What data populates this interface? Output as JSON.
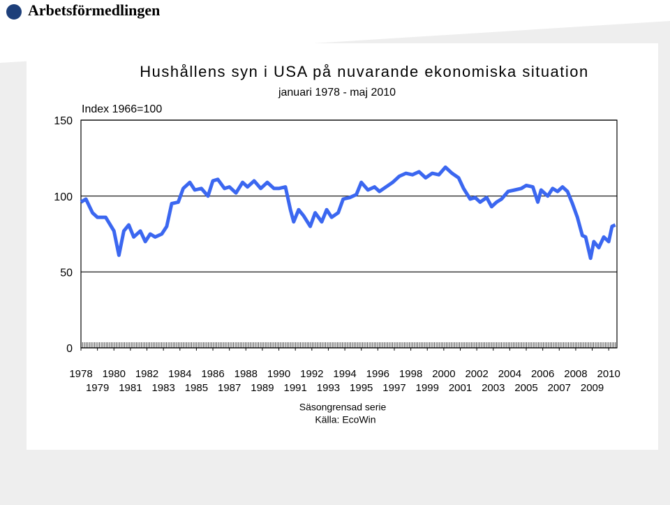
{
  "brand": "Arbetsförmedlingen",
  "chart_data": {
    "type": "line",
    "title": "Hushållens syn i USA på nuvarande ekonomiska situation",
    "subtitle": "januari 1978 - maj 2010",
    "y_label": "Index 1966=100",
    "notes": [
      "Säsongrensad serie",
      "Källa: EcoWin"
    ],
    "xlim": [
      1978,
      2010.5
    ],
    "xticks": [
      1978,
      1979,
      1980,
      1981,
      1982,
      1983,
      1984,
      1985,
      1986,
      1987,
      1988,
      1989,
      1990,
      1991,
      1992,
      1993,
      1994,
      1995,
      1996,
      1997,
      1998,
      1999,
      2000,
      2001,
      2002,
      2003,
      2004,
      2005,
      2006,
      2007,
      2008,
      2009,
      2010
    ],
    "ylim": [
      0,
      150
    ],
    "yticks": [
      0,
      50,
      100,
      150
    ],
    "grid": true,
    "series": [
      {
        "color": "#3b67f0",
        "x": [
          1978.0,
          1978.3,
          1978.7,
          1979.0,
          1979.5,
          1980.0,
          1980.3,
          1980.6,
          1980.9,
          1981.2,
          1981.6,
          1981.9,
          1982.2,
          1982.5,
          1982.9,
          1983.2,
          1983.5,
          1983.9,
          1984.2,
          1984.6,
          1984.9,
          1985.3,
          1985.7,
          1986.0,
          1986.3,
          1986.7,
          1987.0,
          1987.4,
          1987.8,
          1988.1,
          1988.5,
          1988.9,
          1989.3,
          1989.7,
          1990.0,
          1990.4,
          1990.7,
          1990.9,
          1991.2,
          1991.5,
          1991.9,
          1992.2,
          1992.6,
          1992.9,
          1993.2,
          1993.6,
          1993.9,
          1994.3,
          1994.7,
          1995.0,
          1995.4,
          1995.8,
          1996.1,
          1996.5,
          1996.9,
          1997.3,
          1997.7,
          1998.1,
          1998.5,
          1998.9,
          1999.3,
          1999.7,
          2000.1,
          2000.5,
          2000.9,
          2001.2,
          2001.6,
          2001.9,
          2002.2,
          2002.6,
          2002.9,
          2003.2,
          2003.5,
          2003.9,
          2004.3,
          2004.7,
          2005.0,
          2005.4,
          2005.7,
          2005.9,
          2006.3,
          2006.6,
          2006.9,
          2007.2,
          2007.5,
          2007.8,
          2008.1,
          2008.4,
          2008.6,
          2008.9,
          2009.1,
          2009.4,
          2009.7,
          2010.0,
          2010.2,
          2010.4
        ],
        "values": [
          96,
          98,
          89,
          86,
          86,
          77,
          61,
          77,
          81,
          73,
          77,
          70,
          75,
          73,
          75,
          80,
          95,
          96,
          105,
          109,
          104,
          105,
          100,
          110,
          111,
          105,
          106,
          102,
          109,
          106,
          110,
          105,
          109,
          105,
          105,
          106,
          91,
          83,
          91,
          87,
          80,
          89,
          83,
          91,
          86,
          89,
          98,
          99,
          101,
          109,
          104,
          106,
          103,
          106,
          109,
          113,
          115,
          114,
          116,
          112,
          115,
          114,
          119,
          115,
          112,
          105,
          98,
          99,
          96,
          99,
          93,
          96,
          98,
          103,
          104,
          105,
          107,
          106,
          96,
          104,
          100,
          105,
          103,
          106,
          103,
          95,
          86,
          74,
          73,
          59,
          70,
          66,
          73,
          70,
          80,
          81
        ]
      }
    ]
  }
}
